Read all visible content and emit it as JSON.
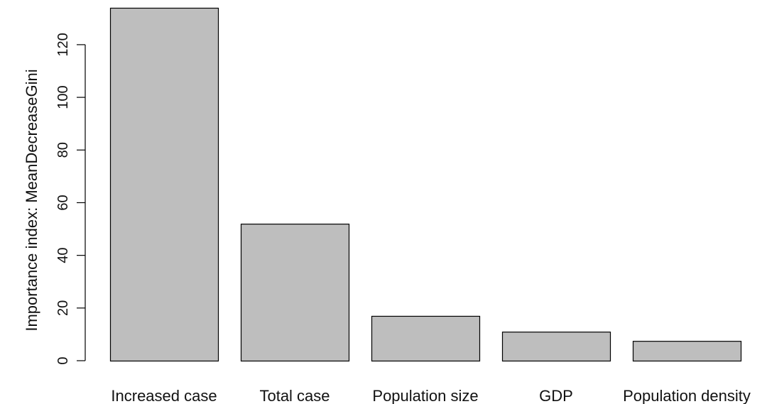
{
  "chart_data": {
    "type": "bar",
    "title": "",
    "xlabel": "",
    "ylabel": "Importance index: MeanDecreaseGini",
    "categories": [
      "Increased case",
      "Total case",
      "Population size",
      "GDP",
      "Population density"
    ],
    "values": [
      134,
      52,
      17,
      11,
      7.5
    ],
    "ylim": [
      0,
      134
    ],
    "yticks": [
      0,
      20,
      40,
      60,
      80,
      100,
      120
    ],
    "grid": false,
    "legend": "none",
    "bar_color": "#bebebe",
    "bar_edge_color": "#000000"
  }
}
